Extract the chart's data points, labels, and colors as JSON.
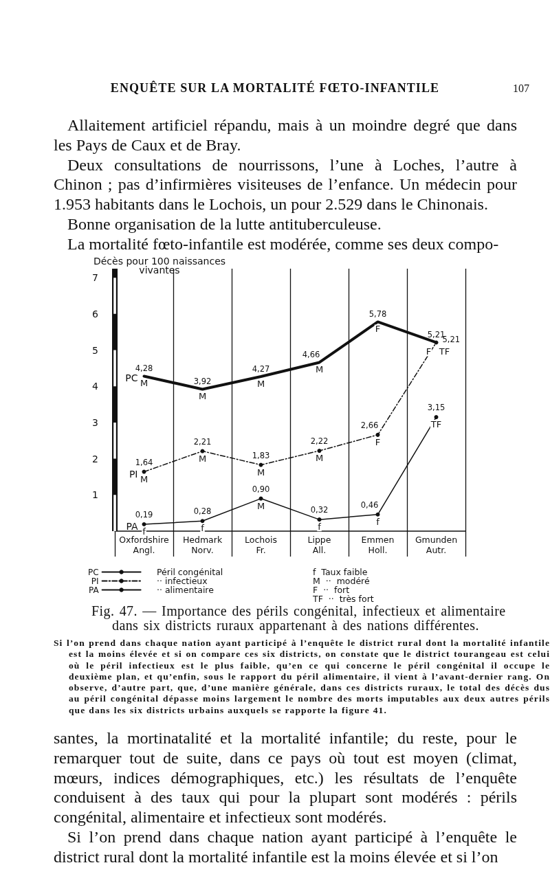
{
  "chart_data": {
    "type": "line",
    "title": "Fig. 47. — Importance des périls congénital, infectieux et alimentaire dans six districts ruraux appartenant à des nations différentes.",
    "ylabel": "Décès pour 100 naissances\nvivantes",
    "categories": [
      "Oxfordshire\nAngl.",
      "Hedmark\nNorv.",
      "Lochois\nFr.",
      "Lippe\nAll.",
      "Emmen\nHoll.",
      "Gmunden\nAutr."
    ],
    "series": [
      {
        "name": "PC",
        "color": "#111111",
        "values": [
          4.28,
          3.92,
          4.27,
          4.66,
          5.78,
          5.21
        ],
        "value_labels": [
          "4,28",
          "3,92",
          "4,27",
          "4,66",
          "5,78",
          "5,21"
        ],
        "marker": "none",
        "line_style": "solid"
      },
      {
        "name": "PI",
        "color": "#111111",
        "values": [
          1.64,
          2.21,
          1.83,
          2.22,
          2.66,
          5.21
        ],
        "value_labels": [
          "1,64",
          "2,21",
          "1,83",
          "2,22",
          "2,66",
          "5,21"
        ],
        "marker": "circle",
        "line_style": "dashed"
      },
      {
        "name": "PA",
        "color": "#111111",
        "values": [
          0.19,
          0.28,
          0.9,
          0.32,
          0.46,
          3.15
        ],
        "value_labels": [
          "0,19",
          "0,28",
          "0,90",
          "0,32",
          "0,46",
          "3,15"
        ],
        "marker": "circle",
        "line_style": "solid"
      }
    ],
    "ylim": [
      0,
      7.25
    ],
    "yticks": [
      1,
      2,
      3,
      4,
      5,
      6,
      7
    ],
    "grid": "x",
    "legend": "bottom left",
    "annotations": [
      "ENQUÊTE SUR LA MORTALITÉ FŒTO-INFANTILE",
      "107",
      "Allaitement artificiel répandu, mais à un moindre degré que dans les Pays de Caux et de Bray.",
      "Deux consultations de nourrissons, l’une à Loches, l’autre à Chinon ; pas d’infirmières visiteuses de l’enfance. Un médecin pour 1.953 habitants dans le Lochois, un pour 2.529 dans le Chinonais.",
      "Bonne organisation de la lutte antituberculeuse.",
      "La mortalité fœto-infantile est modérée, comme ses deux compo-",
      "Péril congénital",
      "·· infectieux",
      "·· alimentaire",
      "f  Taux faible",
      "M  ··  modéré",
      "F  ··  fort",
      "TF  ··  très fort",
      "Si l’on prend dans chaque nation ayant participé à l’enquête le district rural dont la mortalité infantile est la moins élevée et si on compare ces six districts, on constate que le district tourangeau est celui où le péril infectieux est le plus faible, qu’en ce qui concerne le péril congénital il occupe le deuxième plan, et qu’enfin, sous le rapport du péril alimentaire, il vient à l’avant-dernier rang. On observe, d’autre part, que, d’une manière générale, dans ces districts ruraux, le total des décès dus au péril congénital dépasse moins largement le nombre des morts imputables aux deux autres périls que dans les six districts urbains auxquels se rapporte la figure 41.",
      "santes, la mortinatalité et la mortalité infantile; du reste, pour le remarquer tout de suite, dans ce pays où tout est moyen (climat, mœurs, indices démographiques, etc.) les résultats de l’enquête conduisent à des taux qui pour la plupart sont modérés : périls congénital, alimentaire et infectieux sont modérés.",
      "Si l’on prend dans chaque nation ayant participé à l’enquête le district rural dont la mortalité infantile est la moins élevée et si l’on",
      {
        "text": "M",
        "x": "Oxfordshire\nAngl.",
        "y": 4.28
      },
      {
        "text": "M",
        "x": "Hedmark\nNorv.",
        "y": 3.92
      },
      {
        "text": "M",
        "x": "Lochois\nFr.",
        "y": 4.27
      },
      {
        "text": "M",
        "x": "Lippe\nAll.",
        "y": 4.66
      },
      {
        "text": "F",
        "x": "Emmen\nHoll.",
        "y": 5.78
      },
      {
        "text": "F",
        "x": "Gmunden\nAutr.",
        "y": 5.21
      },
      {
        "text": "M",
        "x": "Oxfordshire\nAngl.",
        "y": 1.64
      },
      {
        "text": "M",
        "x": "Hedmark\nNorv.",
        "y": 2.21
      },
      {
        "text": "M",
        "x": "Lochois\nFr.",
        "y": 1.83
      },
      {
        "text": "M",
        "x": "Lippe\nAll.",
        "y": 2.22
      },
      {
        "text": "F",
        "x": "Emmen\nHoll.",
        "y": 2.66
      },
      {
        "text": "TF",
        "x": "Gmunden\nAutr.",
        "y": 5.21
      },
      {
        "text": "f",
        "x": "Oxfordshire\nAngl.",
        "y": 0.19
      },
      {
        "text": "f",
        "x": "Hedmark\nNorv.",
        "y": 0.28
      },
      {
        "text": "M",
        "x": "Lochois\nFr.",
        "y": 0.9
      },
      {
        "text": "f",
        "x": "Lippe\nAll.",
        "y": 0.32
      },
      {
        "text": "f",
        "x": "Emmen\nHoll.",
        "y": 0.46
      },
      {
        "text": "TF",
        "x": "Gmunden\nAutr.",
        "y": 3.15
      }
    ]
  }
}
